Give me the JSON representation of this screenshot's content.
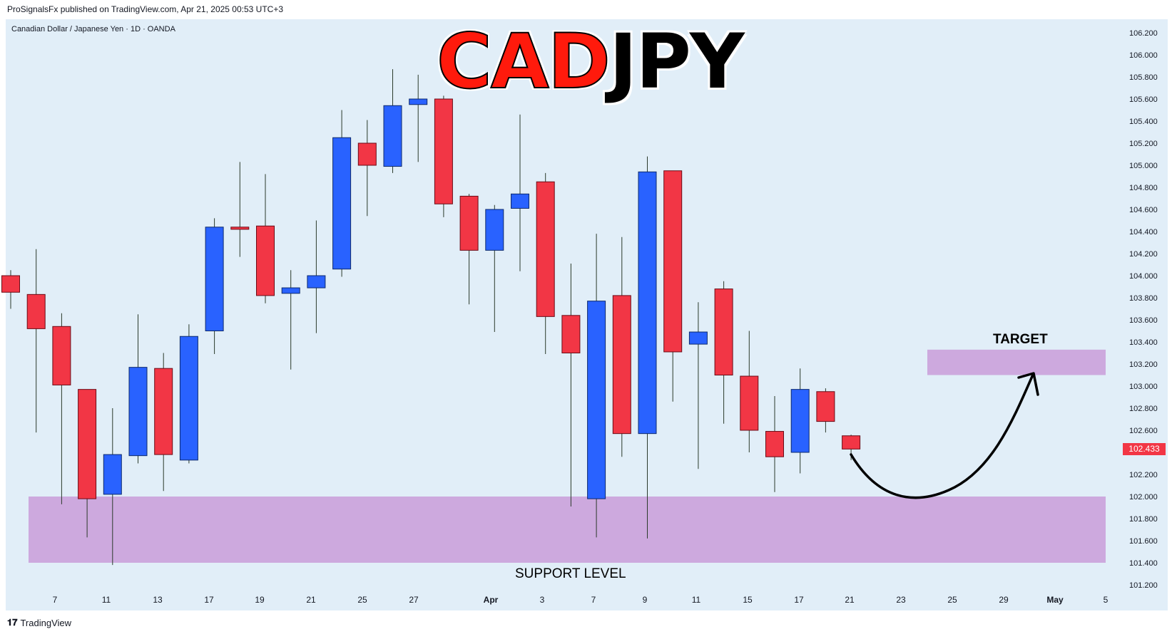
{
  "header": {
    "published": "ProSignalsFx published on TradingView.com, Apr 21, 2025 00:53 UTC+3",
    "symbol": "Canadian Dollar / Japanese Yen · 1D · OANDA"
  },
  "title": {
    "part1": "CAD",
    "part2": "JPY"
  },
  "annotations": {
    "support_label": "SUPPORT LEVEL",
    "target_label": "TARGET",
    "support_zone": {
      "low": 101.4,
      "high": 102.0,
      "color": "#cda9de"
    },
    "target_zone": {
      "low": 103.1,
      "high": 103.33,
      "from_date": "Apr 24",
      "to_date": "May 5",
      "color": "#cda9de"
    },
    "arrow": "curved arrow from 102.43 down to ~101.98 then up to target zone"
  },
  "price_badge": "102.433",
  "footer": {
    "brand": "TradingView",
    "logo": "tradingview-logo"
  },
  "colors": {
    "up": "#2962ff",
    "down": "#f23645",
    "background": "#e1eef8"
  },
  "chart_data": {
    "type": "candlestick",
    "title": "CADJPY",
    "ylim": [
      101.1,
      106.25
    ],
    "yticks": [
      "106.200",
      "106.000",
      "105.800",
      "105.600",
      "105.400",
      "105.200",
      "105.000",
      "104.800",
      "104.600",
      "104.400",
      "104.200",
      "104.000",
      "103.800",
      "103.600",
      "103.400",
      "103.200",
      "103.000",
      "102.800",
      "102.600",
      "102.400",
      "102.200",
      "102.000",
      "101.800",
      "101.600",
      "101.400",
      "101.200"
    ],
    "xticks": [
      "7",
      "11",
      "13",
      "17",
      "19",
      "21",
      "25",
      "27",
      "Apr",
      "3",
      "7",
      "9",
      "11",
      "15",
      "17",
      "21",
      "23",
      "25",
      "29",
      "May",
      "5"
    ],
    "candles": [
      {
        "date": "Mar 4",
        "open": 104.0,
        "high": 104.05,
        "low": 103.7,
        "close": 103.85
      },
      {
        "date": "Mar 5",
        "open": 103.83,
        "high": 104.24,
        "low": 102.58,
        "close": 103.52
      },
      {
        "date": "Mar 6",
        "open": 103.54,
        "high": 103.66,
        "low": 101.93,
        "close": 103.01
      },
      {
        "date": "Mar 7",
        "open": 102.97,
        "high": 102.97,
        "low": 101.63,
        "close": 101.98
      },
      {
        "date": "Mar 10",
        "open": 102.02,
        "high": 102.8,
        "low": 101.38,
        "close": 102.38
      },
      {
        "date": "Mar 11",
        "open": 102.37,
        "high": 103.65,
        "low": 102.3,
        "close": 103.17
      },
      {
        "date": "Mar 12",
        "open": 103.16,
        "high": 103.3,
        "low": 102.05,
        "close": 102.38
      },
      {
        "date": "Mar 13",
        "open": 102.33,
        "high": 103.56,
        "low": 102.3,
        "close": 103.45
      },
      {
        "date": "Mar 14",
        "open": 103.5,
        "high": 104.52,
        "low": 103.29,
        "close": 104.44
      },
      {
        "date": "Mar 17",
        "open": 104.44,
        "high": 105.03,
        "low": 104.17,
        "close": 104.42
      },
      {
        "date": "Mar 18",
        "open": 104.45,
        "high": 104.92,
        "low": 103.75,
        "close": 103.82
      },
      {
        "date": "Mar 19",
        "open": 103.84,
        "high": 104.05,
        "low": 103.15,
        "close": 103.89
      },
      {
        "date": "Mar 20",
        "open": 103.89,
        "high": 104.5,
        "low": 103.48,
        "close": 104.0
      },
      {
        "date": "Mar 21",
        "open": 104.06,
        "high": 105.5,
        "low": 103.99,
        "close": 105.25
      },
      {
        "date": "Mar 24",
        "open": 105.2,
        "high": 105.41,
        "low": 104.54,
        "close": 105.0
      },
      {
        "date": "Mar 25",
        "open": 104.99,
        "high": 105.87,
        "low": 104.93,
        "close": 105.54
      },
      {
        "date": "Mar 26",
        "open": 105.55,
        "high": 105.82,
        "low": 105.03,
        "close": 105.6
      },
      {
        "date": "Mar 27",
        "open": 105.6,
        "high": 105.63,
        "low": 104.53,
        "close": 104.65
      },
      {
        "date": "Mar 28",
        "open": 104.72,
        "high": 104.74,
        "low": 103.74,
        "close": 104.23
      },
      {
        "date": "Mar 31",
        "open": 104.23,
        "high": 104.64,
        "low": 103.49,
        "close": 104.6
      },
      {
        "date": "Apr 1",
        "open": 104.61,
        "high": 105.46,
        "low": 104.04,
        "close": 104.74
      },
      {
        "date": "Apr 2",
        "open": 104.85,
        "high": 104.93,
        "low": 103.29,
        "close": 103.63
      },
      {
        "date": "Apr 3",
        "open": 103.64,
        "high": 104.11,
        "low": 101.91,
        "close": 103.3
      },
      {
        "date": "Apr 4",
        "open": 101.98,
        "high": 104.38,
        "low": 101.63,
        "close": 103.77
      },
      {
        "date": "Apr 7",
        "open": 103.82,
        "high": 104.35,
        "low": 102.36,
        "close": 102.57
      },
      {
        "date": "Apr 8",
        "open": 102.57,
        "high": 105.08,
        "low": 101.62,
        "close": 104.94
      },
      {
        "date": "Apr 9",
        "open": 104.95,
        "high": 104.95,
        "low": 102.86,
        "close": 103.31
      },
      {
        "date": "Apr 10",
        "open": 103.38,
        "high": 103.76,
        "low": 102.25,
        "close": 103.49
      },
      {
        "date": "Apr 11",
        "open": 103.88,
        "high": 103.95,
        "low": 102.66,
        "close": 103.1
      },
      {
        "date": "Apr 14",
        "open": 103.09,
        "high": 103.5,
        "low": 102.4,
        "close": 102.6
      },
      {
        "date": "Apr 15",
        "open": 102.59,
        "high": 102.91,
        "low": 102.04,
        "close": 102.36
      },
      {
        "date": "Apr 16",
        "open": 102.4,
        "high": 103.16,
        "low": 102.21,
        "close": 102.97
      },
      {
        "date": "Apr 17",
        "open": 102.95,
        "high": 102.98,
        "low": 102.58,
        "close": 102.68
      },
      {
        "date": "Apr 18",
        "open": 102.55,
        "high": 102.56,
        "low": 102.33,
        "close": 102.43
      }
    ]
  }
}
